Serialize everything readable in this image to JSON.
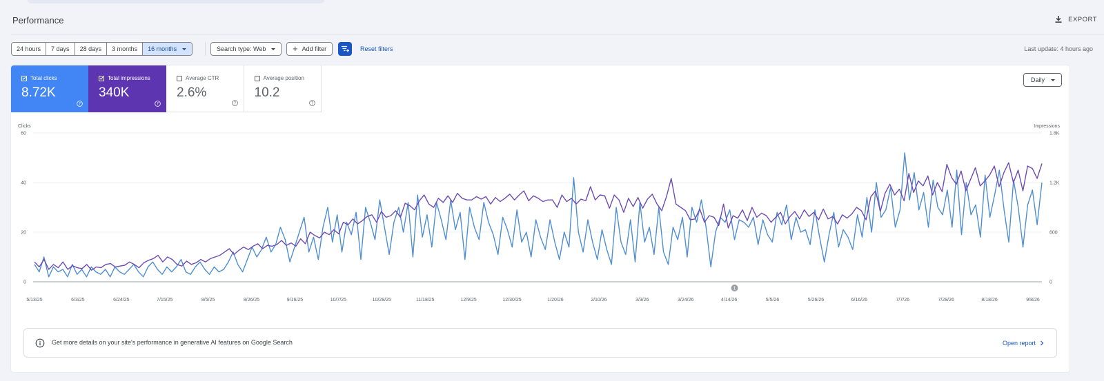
{
  "header": {
    "title": "Performance",
    "export_label": "EXPORT"
  },
  "toolbar": {
    "date_ranges": [
      "24 hours",
      "7 days",
      "28 days",
      "3 months",
      "16 months"
    ],
    "selected_range": "16 months",
    "search_type": "Search type: Web",
    "add_filter": "Add filter",
    "reset_filters": "Reset filters",
    "last_update": "Last update: 4 hours ago"
  },
  "metrics": {
    "clicks": {
      "label": "Total clicks",
      "value": "8.72K",
      "checked": true,
      "color": "#4285f4"
    },
    "impressions": {
      "label": "Total impressions",
      "value": "340K",
      "checked": true,
      "color": "#5e35b1"
    },
    "ctr": {
      "label": "Average CTR",
      "value": "2.6%",
      "checked": false
    },
    "position": {
      "label": "Average position",
      "value": "10.2",
      "checked": false
    }
  },
  "granularity": "Daily",
  "chart_data": {
    "type": "line",
    "left_axis": {
      "label": "Clicks",
      "ticks": [
        "0",
        "20",
        "40",
        "60"
      ],
      "range": [
        0,
        60
      ]
    },
    "right_axis": {
      "label": "Impressions",
      "ticks": [
        "0",
        "600",
        "1.2K",
        "1.8K"
      ],
      "range": [
        0,
        1800
      ]
    },
    "x_labels": [
      "5/13/25",
      "6/3/25",
      "6/24/25",
      "7/15/25",
      "8/5/25",
      "8/26/25",
      "9/16/25",
      "10/7/25",
      "10/28/25",
      "11/18/25",
      "12/9/25",
      "12/30/25",
      "1/20/26",
      "2/10/26",
      "3/3/26",
      "3/24/26",
      "4/14/26",
      "5/5/26",
      "5/26/26",
      "6/16/26",
      "7/7/26",
      "7/28/26",
      "8/18/26",
      "9/8/26"
    ],
    "annotation": {
      "label": "1",
      "at": "4/14/26"
    },
    "series": [
      {
        "name": "Clicks",
        "color": "#4e8ed1",
        "axis": "left",
        "values": [
          7,
          4,
          10,
          2,
          6,
          4,
          5,
          2,
          7,
          3,
          5,
          2,
          6,
          4,
          3,
          5,
          2,
          6,
          4,
          3,
          5,
          7,
          4,
          2,
          6,
          8,
          5,
          3,
          6,
          4,
          6,
          9,
          4,
          3,
          6,
          8,
          5,
          3,
          6,
          4,
          5,
          8,
          12,
          7,
          4,
          9,
          14,
          10,
          13,
          18,
          12,
          15,
          22,
          17,
          8,
          14,
          20,
          26,
          12,
          18,
          9,
          22,
          30,
          16,
          27,
          12,
          24,
          19,
          28,
          9,
          30,
          24,
          17,
          33,
          22,
          11,
          24,
          30,
          20,
          32,
          10,
          35,
          18,
          27,
          14,
          32,
          25,
          17,
          33,
          21,
          28,
          9,
          30,
          22,
          17,
          32,
          24,
          19,
          11,
          26,
          21,
          14,
          29,
          16,
          20,
          10,
          25,
          18,
          13,
          25,
          16,
          9,
          20,
          14,
          42,
          20,
          12,
          25,
          16,
          9,
          21,
          13,
          7,
          30,
          16,
          11,
          25,
          8,
          32,
          16,
          22,
          11,
          30,
          12,
          7,
          22,
          17,
          26,
          10,
          30,
          24,
          33,
          22,
          6,
          20,
          26,
          24,
          29,
          17,
          25,
          24,
          22,
          26,
          15,
          25,
          19,
          16,
          28,
          23,
          31,
          17,
          26,
          20,
          21,
          15,
          29,
          18,
          8,
          19,
          28,
          14,
          21,
          18,
          13,
          27,
          18,
          34,
          20,
          40,
          26,
          29,
          38,
          22,
          29,
          52,
          33,
          44,
          29,
          36,
          22,
          41,
          30,
          27,
          37,
          22,
          45,
          19,
          40,
          27,
          31,
          18,
          43,
          26,
          35,
          45,
          29,
          16,
          41,
          30,
          14,
          31,
          37,
          23,
          40
        ]
      },
      {
        "name": "Impressions",
        "color": "#6d4bb3",
        "axis": "right",
        "values": [
          240,
          180,
          270,
          150,
          210,
          170,
          240,
          150,
          195,
          170,
          160,
          210,
          140,
          180,
          170,
          210,
          220,
          180,
          190,
          200,
          240,
          210,
          170,
          230,
          260,
          280,
          320,
          240,
          300,
          270,
          210,
          190,
          250,
          210,
          230,
          270,
          240,
          280,
          300,
          320,
          360,
          400,
          330,
          380,
          420,
          390,
          430,
          460,
          400,
          440,
          430,
          450,
          500,
          440,
          470,
          430,
          520,
          460,
          600,
          560,
          530,
          600,
          570,
          630,
          580,
          720,
          690,
          760,
          700,
          740,
          790,
          810,
          720,
          850,
          780,
          800,
          860,
          780,
          950,
          920,
          870,
          980,
          1050,
          940,
          900,
          1010,
          960,
          1040,
          960,
          1070,
          1010,
          990,
          990,
          1030,
          1000,
          1030,
          940,
          1020,
          970,
          1010,
          1060,
          990,
          1050,
          1100,
          980,
          1040,
          1010,
          970,
          990,
          990,
          900,
          1050,
          970,
          1010,
          940,
          1000,
          980,
          1150,
          990,
          1050,
          1040,
          890,
          1050,
          990,
          840,
          1010,
          910,
          1020,
          890,
          1000,
          1060,
          940,
          860,
          1030,
          1250,
          940,
          900,
          860,
          750,
          760,
          880,
          720,
          800,
          780,
          680,
          940,
          650,
          800,
          770,
          870,
          740,
          900,
          780,
          830,
          800,
          720,
          780,
          840,
          700,
          790,
          850,
          760,
          870,
          790,
          840,
          750,
          880,
          760,
          790,
          700,
          810,
          770,
          820,
          900,
          860,
          750,
          1030,
          1100,
          850,
          1070,
          1180,
          1050,
          1120,
          980,
          1310,
          1080,
          1220,
          1160,
          1280,
          1050,
          1200,
          1090,
          1420,
          1260,
          1180,
          1340,
          1100,
          1240,
          1380,
          1160,
          1220,
          1290,
          1400,
          1150,
          1320,
          1440,
          1200,
          1350,
          1100,
          1400,
          1370,
          1250,
          1430
        ]
      }
    ]
  },
  "notice": {
    "text": "Get more details on your site's performance in generative AI features on Google Search",
    "link": "Open report"
  }
}
